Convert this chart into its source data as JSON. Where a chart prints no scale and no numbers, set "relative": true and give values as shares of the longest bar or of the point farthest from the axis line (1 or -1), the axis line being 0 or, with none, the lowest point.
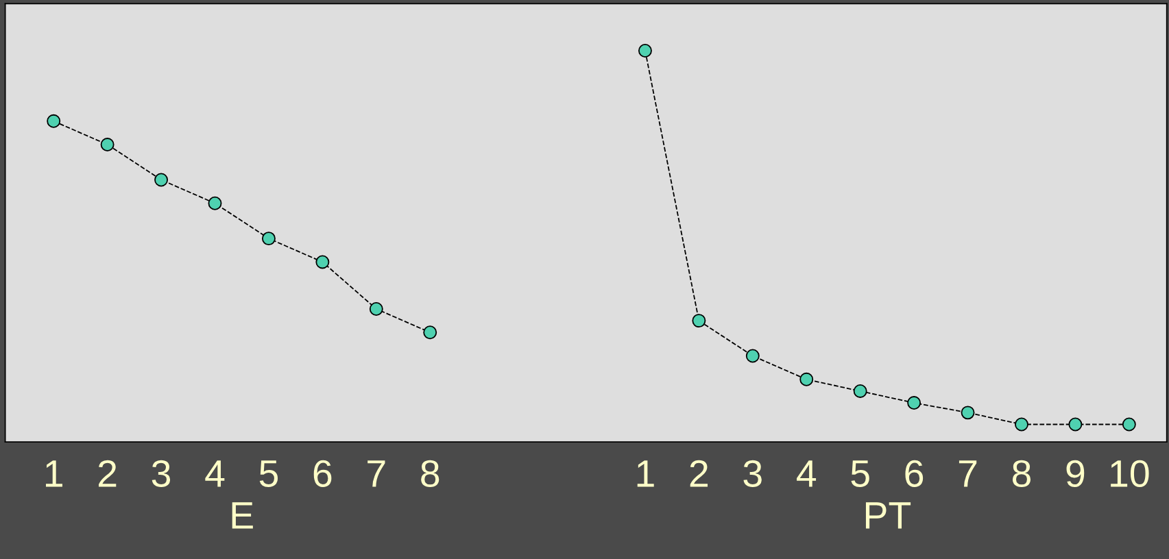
{
  "chart_data": {
    "type": "line",
    "relative": true,
    "categories": [
      "1",
      "2",
      "3",
      "4",
      "5",
      "6",
      "7",
      "8",
      null,
      null,
      null,
      "1",
      "2",
      "3",
      "4",
      "5",
      "6",
      "7",
      "8",
      "9",
      "10"
    ],
    "series": [
      {
        "color": "#4fd1b0",
        "values": [
          0.82,
          0.76,
          0.67,
          0.61,
          0.52,
          0.46,
          0.34,
          0.28,
          null,
          null,
          null,
          null,
          null,
          null,
          null,
          null,
          null,
          null,
          null,
          null,
          null
        ]
      },
      {
        "color": "#4fd1b0",
        "values": [
          null,
          null,
          null,
          null,
          null,
          null,
          null,
          null,
          null,
          null,
          null,
          1,
          0.31,
          0.22,
          0.16,
          0.13,
          0.1,
          0.075,
          0.045,
          0.045,
          0.045
        ]
      }
    ],
    "annotations": [
      "E",
      "PT"
    ],
    "marker": "circle",
    "line_style": "dashed",
    "grid": false,
    "legend": false
  }
}
